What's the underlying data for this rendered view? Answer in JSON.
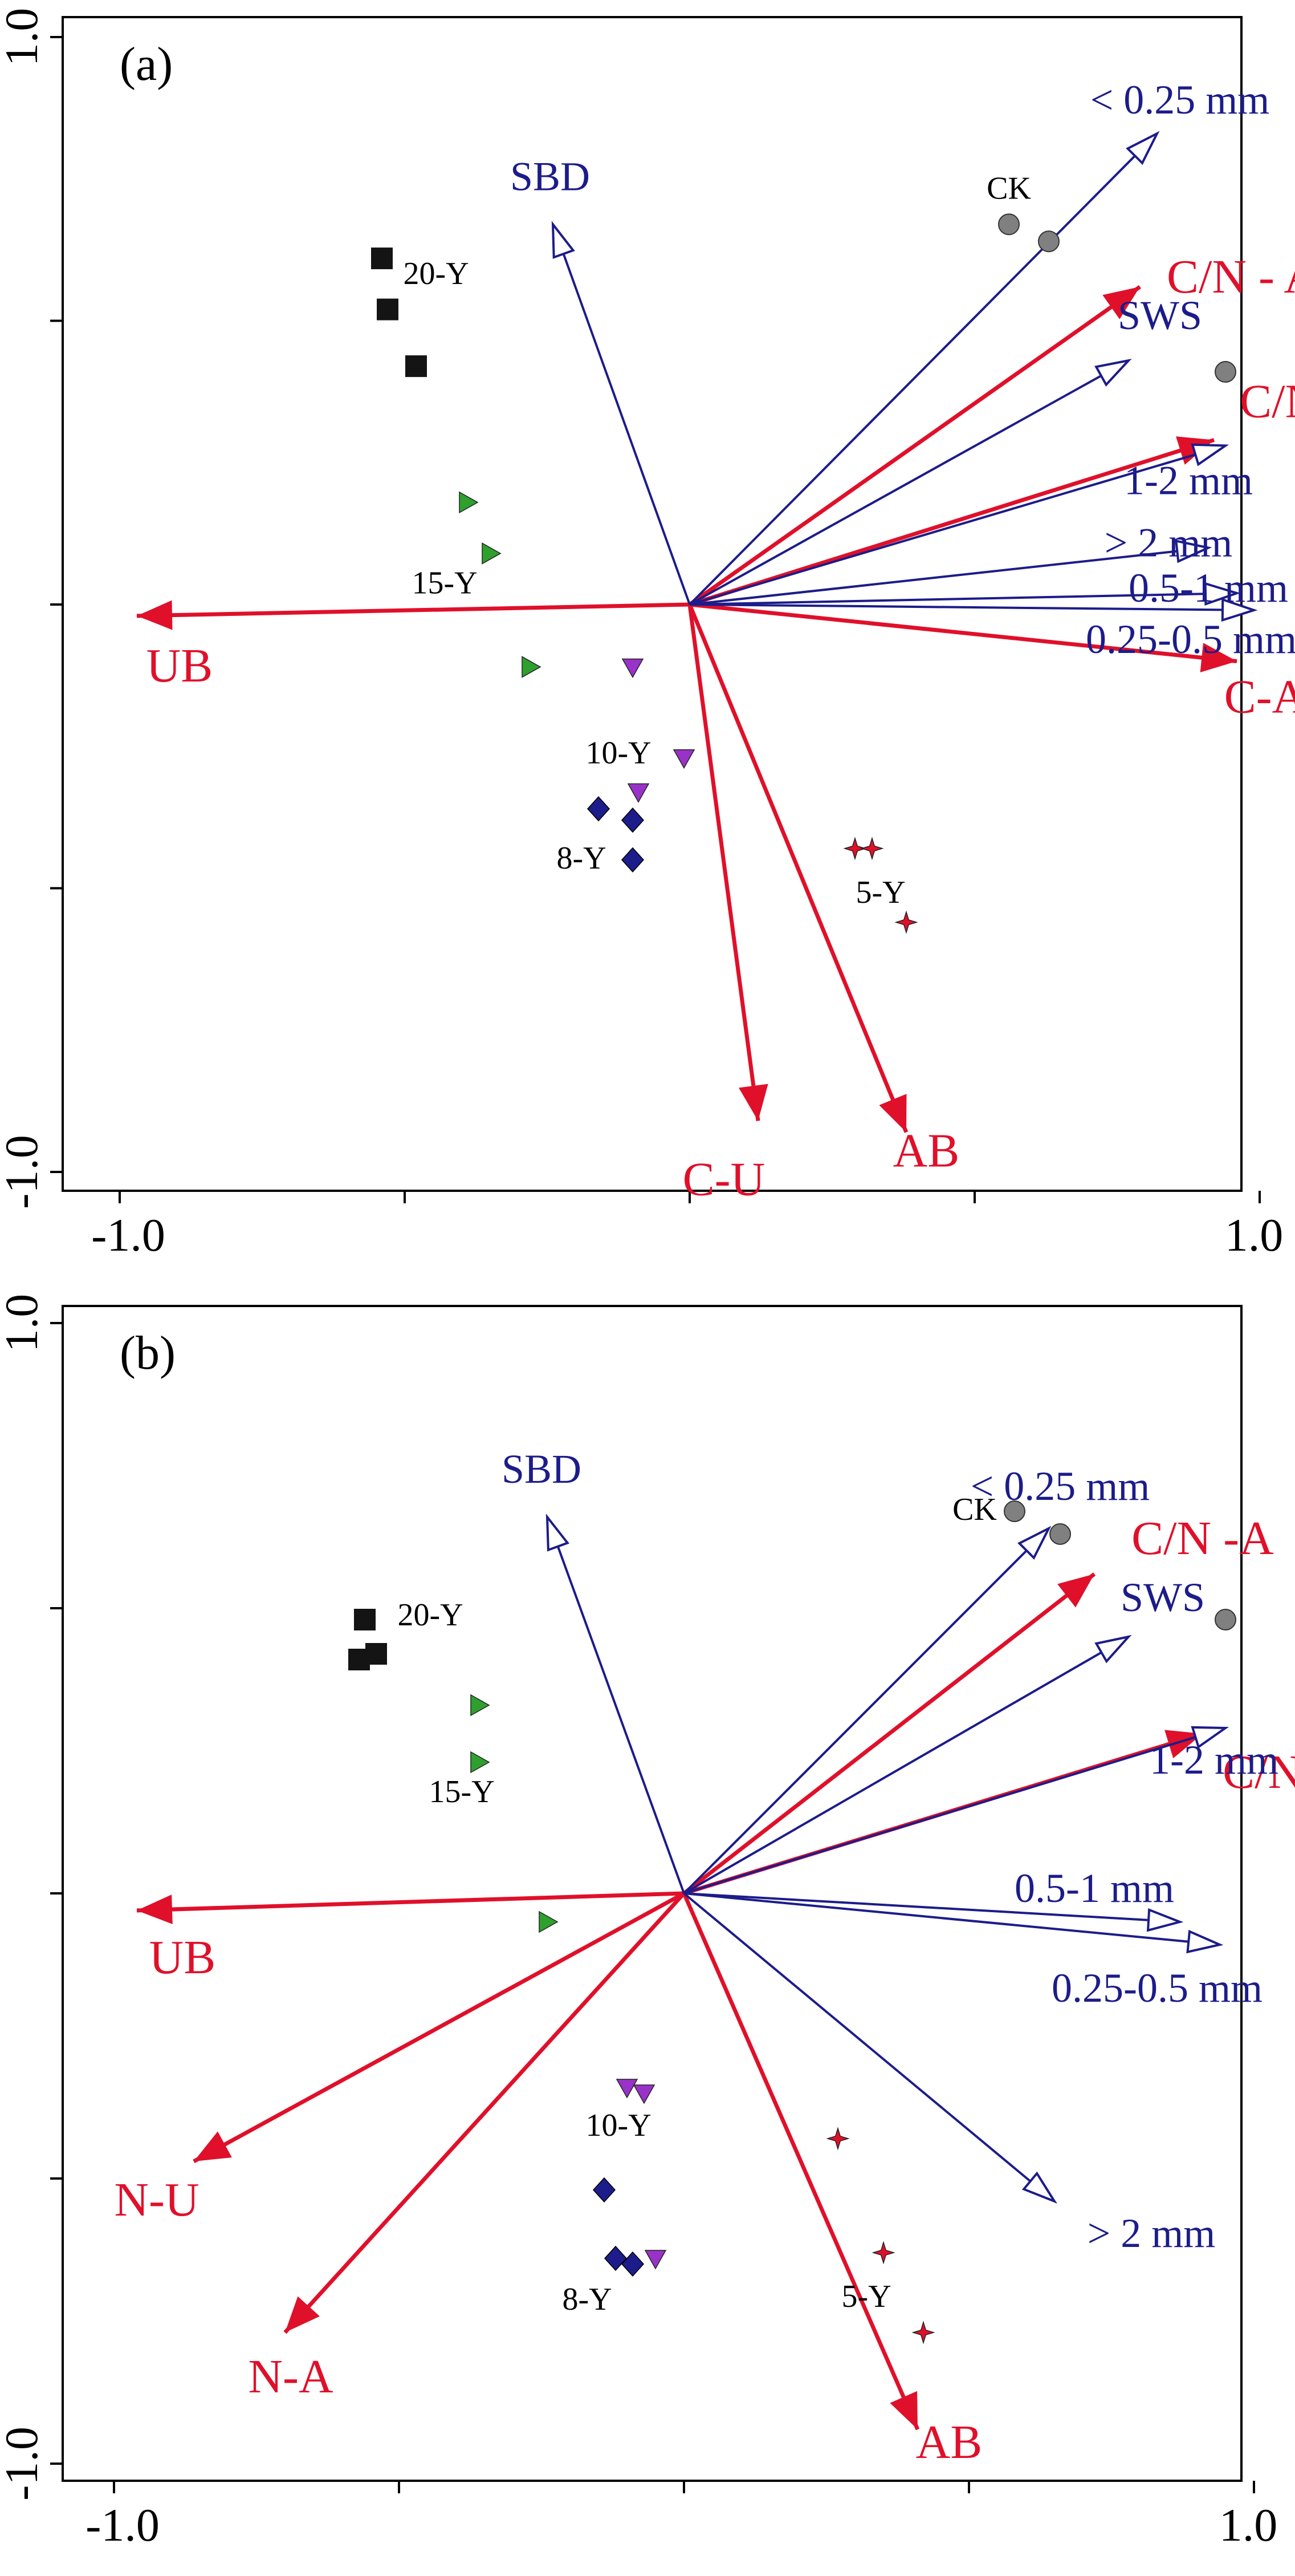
{
  "colors": {
    "env": "#1c1c8a",
    "resp": "#e0102a",
    "axis": "#000000",
    "ck": "#808080",
    "y5": "#e0102a",
    "y8": "#1c1c8a",
    "y10": "#9932c8",
    "y15": "#2ea02e",
    "y20": "#141414"
  },
  "chart_data": [
    {
      "type": "scatter",
      "subtype": "rda-biplot",
      "panel_label": "(a)",
      "xlim": [
        -1.0,
        1.0
      ],
      "ylim": [
        -1.0,
        1.0
      ],
      "x_tick_labels": [
        "-1.0",
        "1.0"
      ],
      "y_tick_labels": [
        "1.0",
        "-1.0"
      ],
      "env_arrows": [
        {
          "label": "SBD",
          "x": -0.24,
          "y": 0.67
        },
        {
          "label": "< 0.25 mm",
          "x": 0.82,
          "y": 0.83
        },
        {
          "label": "SWS",
          "x": 0.77,
          "y": 0.43
        },
        {
          "label": "1-2 mm",
          "x": 0.94,
          "y": 0.28
        },
        {
          "label": "> 2 mm",
          "x": 0.91,
          "y": 0.1
        },
        {
          "label": "0.5-1 mm",
          "x": 0.96,
          "y": 0.02
        },
        {
          "label": "0.25-0.5 mm",
          "x": 0.99,
          "y": -0.01
        }
      ],
      "resp_arrows": [
        {
          "label": "C/N - A",
          "x": 0.79,
          "y": 0.56
        },
        {
          "label": "C/N -U",
          "x": 0.92,
          "y": 0.29
        },
        {
          "label": "C-A",
          "x": 0.96,
          "y": -0.1
        },
        {
          "label": "UB",
          "x": -0.97,
          "y": -0.02
        },
        {
          "label": "C-U",
          "x": 0.12,
          "y": -0.91
        },
        {
          "label": "AB",
          "x": 0.38,
          "y": -0.93
        }
      ],
      "sample_labels": [
        "CK",
        "5-Y",
        "8-Y",
        "10-Y",
        "15-Y",
        "20-Y"
      ],
      "samples": [
        {
          "group": "CK",
          "points": [
            [
              0.56,
              0.67
            ],
            [
              0.63,
              0.64
            ],
            [
              0.94,
              0.41
            ]
          ]
        },
        {
          "group": "5-Y",
          "points": [
            [
              0.29,
              -0.43
            ],
            [
              0.32,
              -0.43
            ],
            [
              0.38,
              -0.56
            ]
          ]
        },
        {
          "group": "8-Y",
          "points": [
            [
              -0.16,
              -0.36
            ],
            [
              -0.1,
              -0.38
            ],
            [
              -0.1,
              -0.45
            ]
          ]
        },
        {
          "group": "10-Y",
          "points": [
            [
              -0.1,
              -0.11
            ],
            [
              -0.01,
              -0.27
            ],
            [
              -0.09,
              -0.33
            ]
          ]
        },
        {
          "group": "15-Y",
          "points": [
            [
              -0.39,
              0.18
            ],
            [
              -0.35,
              0.09
            ],
            [
              -0.28,
              -0.11
            ]
          ]
        },
        {
          "group": "20-Y",
          "points": [
            [
              -0.54,
              0.61
            ],
            [
              -0.53,
              0.52
            ],
            [
              -0.48,
              0.42
            ]
          ]
        }
      ]
    },
    {
      "type": "scatter",
      "subtype": "rda-biplot",
      "panel_label": "(b)",
      "xlim": [
        -1.0,
        1.0
      ],
      "ylim": [
        -1.0,
        1.0
      ],
      "x_tick_labels": [
        "-1.0",
        "1.0"
      ],
      "y_tick_labels": [
        "1.0",
        "-1.0"
      ],
      "env_arrows": [
        {
          "label": "SBD",
          "x": -0.24,
          "y": 0.66
        },
        {
          "label": "< 0.25 mm",
          "x": 0.64,
          "y": 0.64
        },
        {
          "label": "SWS",
          "x": 0.78,
          "y": 0.45
        },
        {
          "label": "1-2 mm",
          "x": 0.95,
          "y": 0.29
        },
        {
          "label": "0.5-1 mm",
          "x": 0.87,
          "y": -0.05
        },
        {
          "label": "0.25-0.5 mm",
          "x": 0.94,
          "y": -0.09
        },
        {
          "label": "> 2 mm",
          "x": 0.65,
          "y": -0.54
        }
      ],
      "resp_arrows": [
        {
          "label": "C/N -A",
          "x": 0.72,
          "y": 0.56
        },
        {
          "label": "C/N -U",
          "x": 0.91,
          "y": 0.28
        },
        {
          "label": "UB",
          "x": -0.96,
          "y": -0.03
        },
        {
          "label": "N-U",
          "x": -0.86,
          "y": -0.47
        },
        {
          "label": "N-A",
          "x": -0.7,
          "y": -0.77
        },
        {
          "label": "AB",
          "x": 0.41,
          "y": -0.94
        }
      ],
      "sample_labels": [
        "CK",
        "5-Y",
        "8-Y",
        "10-Y",
        "15-Y",
        "20-Y"
      ],
      "samples": [
        {
          "group": "CK",
          "points": [
            [
              0.58,
              0.67
            ],
            [
              0.66,
              0.63
            ],
            [
              0.95,
              0.48
            ]
          ]
        },
        {
          "group": "5-Y",
          "points": [
            [
              0.27,
              -0.43
            ],
            [
              0.35,
              -0.63
            ],
            [
              0.42,
              -0.77
            ]
          ]
        },
        {
          "group": "8-Y",
          "points": [
            [
              -0.14,
              -0.52
            ],
            [
              -0.12,
              -0.64
            ],
            [
              -0.09,
              -0.65
            ]
          ]
        },
        {
          "group": "10-Y",
          "points": [
            [
              -0.1,
              -0.34
            ],
            [
              -0.07,
              -0.35
            ],
            [
              -0.05,
              -0.64
            ]
          ]
        },
        {
          "group": "15-Y",
          "points": [
            [
              -0.36,
              0.33
            ],
            [
              -0.36,
              0.23
            ],
            [
              -0.24,
              -0.05
            ]
          ]
        },
        {
          "group": "20-Y",
          "points": [
            [
              -0.56,
              0.48
            ],
            [
              -0.54,
              0.42
            ],
            [
              -0.57,
              0.41
            ]
          ]
        }
      ]
    }
  ]
}
